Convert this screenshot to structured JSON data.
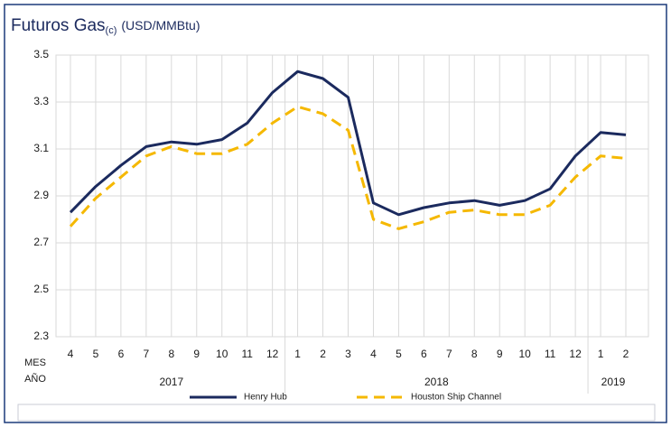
{
  "chart_data": {
    "type": "line",
    "title": "Futuros Gas",
    "title_sub": "(c)",
    "y_label": "(USD/MMBtu)",
    "row_labels": [
      "MES",
      "AÑO"
    ],
    "groups": [
      {
        "year": "2017",
        "months": [
          "4",
          "5",
          "6",
          "7",
          "8",
          "9",
          "10",
          "11",
          "12"
        ]
      },
      {
        "year": "2018",
        "months": [
          "1",
          "2",
          "3",
          "4",
          "5",
          "6",
          "7",
          "8",
          "9",
          "10",
          "11",
          "12"
        ]
      },
      {
        "year": "2019",
        "months": [
          "1",
          "2"
        ]
      }
    ],
    "series": [
      {
        "name": "Henry Hub",
        "color": "#1b2a5e",
        "dashed": false,
        "values": [
          2.83,
          2.94,
          3.03,
          3.11,
          3.13,
          3.12,
          3.14,
          3.21,
          3.34,
          3.43,
          3.4,
          3.32,
          2.87,
          2.82,
          2.85,
          2.87,
          2.88,
          2.86,
          2.88,
          2.93,
          3.07,
          3.17,
          3.16
        ]
      },
      {
        "name": "Houston Ship Channel",
        "color": "#f5b800",
        "dashed": true,
        "values": [
          2.77,
          2.89,
          2.98,
          3.07,
          3.11,
          3.08,
          3.08,
          3.12,
          3.21,
          3.28,
          3.25,
          3.18,
          2.8,
          2.76,
          2.79,
          2.83,
          2.84,
          2.82,
          2.82,
          2.86,
          2.98,
          3.07,
          3.06
        ]
      }
    ],
    "ylim": [
      2.3,
      3.5
    ],
    "yticks": [
      2.3,
      2.5,
      2.7,
      2.9,
      3.1,
      3.3,
      3.5
    ],
    "grid": true
  }
}
